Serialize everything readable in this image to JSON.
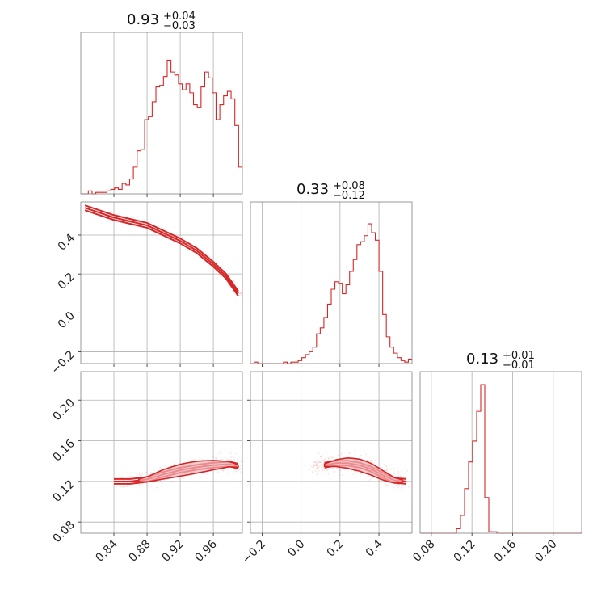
{
  "colors": {
    "accent": "#d62728",
    "fill": "#f2b8bb",
    "grid": "#b0b0b0",
    "frame": "#808080"
  },
  "chart_data": {
    "type": "corner",
    "params": [
      {
        "title_value": "0.93",
        "err_plus": "+0.04",
        "err_minus": "−0.03",
        "range": [
          0.8,
          0.995
        ]
      },
      {
        "title_value": "0.33",
        "err_plus": "+0.08",
        "err_minus": "−0.12",
        "range": [
          -0.26,
          0.57
        ]
      },
      {
        "title_value": "0.13",
        "err_plus": "+0.01",
        "err_minus": "−0.01",
        "range": [
          0.069,
          0.228
        ]
      }
    ],
    "ticks": [
      [
        0.84,
        0.88,
        0.92,
        0.96
      ],
      [
        -0.2,
        0.0,
        0.2,
        0.4
      ],
      [
        0.08,
        0.12,
        0.16,
        0.2
      ]
    ],
    "tick_labels": [
      [
        "0.84",
        "0.88",
        "0.92",
        "0.96"
      ],
      [
        "−0.2",
        "0.0",
        "0.2",
        "0.4"
      ],
      [
        "0.08",
        "0.12",
        "0.16",
        "0.20"
      ]
    ],
    "hist_1": {
      "range": [
        0.8,
        0.995
      ],
      "counts": [
        0,
        0,
        0.02,
        0,
        0.01,
        0.01,
        0.01,
        0.02,
        0.03,
        0.04,
        0.03,
        0.07,
        0.06,
        0.1,
        0.18,
        0.29,
        0.3,
        0.5,
        0.52,
        0.62,
        0.72,
        0.73,
        0.79,
        0.9,
        0.82,
        0.8,
        0.74,
        0.7,
        0.74,
        0.68,
        0.6,
        0.58,
        0.72,
        0.82,
        0.78,
        0.68,
        0.5,
        0.6,
        0.66,
        0.69,
        0.64,
        0.46,
        0.18
      ]
    },
    "hist_2": {
      "range": [
        -0.26,
        0.57
      ],
      "counts": [
        0,
        0.01,
        0,
        0,
        0,
        0,
        0,
        0,
        0,
        0.01,
        0,
        0.01,
        0.01,
        0.02,
        0.04,
        0.06,
        0.08,
        0.11,
        0.2,
        0.24,
        0.31,
        0.4,
        0.5,
        0.55,
        0.54,
        0.47,
        0.53,
        0.62,
        0.7,
        0.8,
        0.82,
        0.86,
        0.94,
        0.88,
        0.83,
        0.62,
        0.33,
        0.18,
        0.11,
        0.07,
        0.04,
        0.02,
        0.01,
        0.03
      ]
    },
    "hist_3": {
      "range": [
        0.069,
        0.228
      ],
      "counts": [
        0,
        0,
        0,
        0,
        0,
        0,
        0,
        0,
        0,
        0.03,
        0.12,
        0.3,
        0.48,
        0.62,
        0.82,
        1.0,
        0.24,
        0.01,
        0.01,
        0,
        0,
        0,
        0,
        0,
        0,
        0,
        0,
        0,
        0,
        0,
        0,
        0,
        0,
        0,
        0,
        0,
        0,
        0,
        0,
        0
      ]
    },
    "scatter_1_2": {
      "ridge_x": [
        0.805,
        0.84,
        0.86,
        0.88,
        0.9,
        0.92,
        0.94,
        0.96,
        0.975,
        0.99
      ],
      "ridge_y": [
        0.54,
        0.49,
        0.47,
        0.45,
        0.41,
        0.37,
        0.32,
        0.25,
        0.19,
        0.1
      ]
    },
    "scatter_1_3": {
      "ridge_x": [
        0.84,
        0.86,
        0.88,
        0.9,
        0.92,
        0.94,
        0.96,
        0.98,
        0.99
      ],
      "ridge_y": [
        0.12,
        0.12,
        0.122,
        0.127,
        0.131,
        0.134,
        0.136,
        0.137,
        0.135
      ]
    },
    "scatter_2_3": {
      "ridge_x": [
        0.12,
        0.18,
        0.24,
        0.3,
        0.36,
        0.42,
        0.48,
        0.54
      ],
      "ridge_y": [
        0.136,
        0.138,
        0.138,
        0.136,
        0.132,
        0.126,
        0.121,
        0.12
      ]
    }
  }
}
